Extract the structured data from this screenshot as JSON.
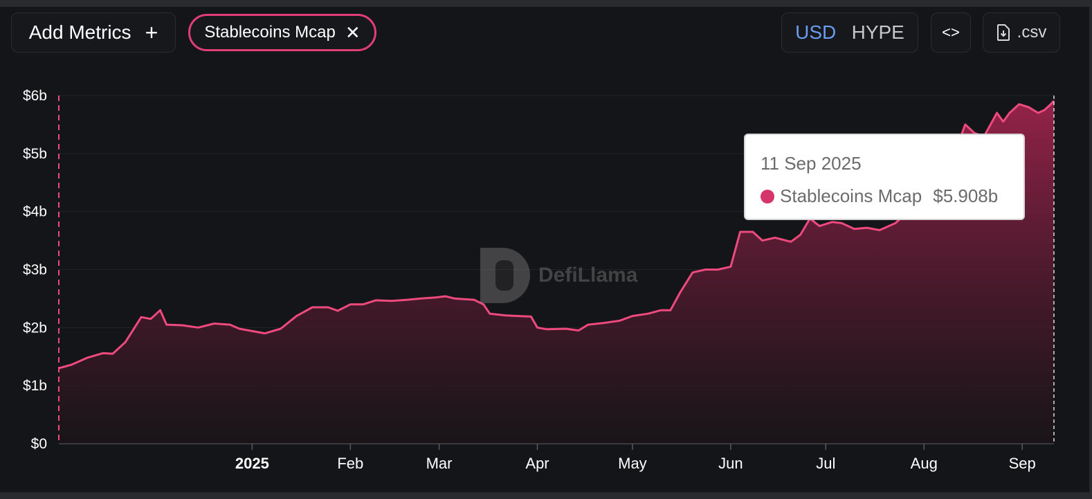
{
  "toolbar": {
    "add_metrics_label": "Add Metrics",
    "add_metrics_icon": "plus-icon",
    "selected_metric": "Stablecoins Mcap",
    "remove_icon": "close-icon",
    "currency_options": [
      "USD",
      "HYPE"
    ],
    "currency_selected": "USD",
    "embed_icon": "code-icon",
    "csv_label": ".csv",
    "csv_icon": "file-download-icon"
  },
  "watermark": {
    "text": "DefiLlama"
  },
  "tooltip": {
    "date": "11 Sep 2025",
    "series_name": "Stablecoins Mcap",
    "value": "$5.908b"
  },
  "colors": {
    "series": "#ef4a7e",
    "accent_blue": "#6a9cf0",
    "background": "#141518"
  },
  "chart_data": {
    "type": "area",
    "y_tick_labels": [
      "$0",
      "$1b",
      "$2b",
      "$3b",
      "$4b",
      "$5b",
      "$6b"
    ],
    "x_tick_labels": [
      "2025",
      "Feb",
      "Mar",
      "Apr",
      "May",
      "Jun",
      "Jul",
      "Aug",
      "Sep"
    ],
    "x_ticks": [
      "2025-01-01",
      "2025-02-01",
      "2025-03-01",
      "2025-04-01",
      "2025-05-01",
      "2025-06-01",
      "2025-07-01",
      "2025-08-01",
      "2025-09-01"
    ],
    "xlim": [
      "2024-11-01",
      "2025-09-11"
    ],
    "ylim": [
      0,
      6
    ],
    "y_unit": "billions USD",
    "series": [
      {
        "name": "Stablecoins Mcap",
        "points": [
          [
            "2024-11-01",
            1.3
          ],
          [
            "2024-11-05",
            1.36
          ],
          [
            "2024-11-10",
            1.48
          ],
          [
            "2024-11-15",
            1.56
          ],
          [
            "2024-11-18",
            1.55
          ],
          [
            "2024-11-22",
            1.75
          ],
          [
            "2024-11-27",
            2.18
          ],
          [
            "2024-11-30",
            2.15
          ],
          [
            "2024-12-03",
            2.3
          ],
          [
            "2024-12-05",
            2.05
          ],
          [
            "2024-12-10",
            2.04
          ],
          [
            "2024-12-15",
            2.0
          ],
          [
            "2024-12-20",
            2.07
          ],
          [
            "2024-12-25",
            2.05
          ],
          [
            "2024-12-28",
            1.98
          ],
          [
            "2025-01-05",
            1.9
          ],
          [
            "2025-01-10",
            1.98
          ],
          [
            "2025-01-15",
            2.2
          ],
          [
            "2025-01-20",
            2.35
          ],
          [
            "2025-01-25",
            2.35
          ],
          [
            "2025-01-28",
            2.29
          ],
          [
            "2025-02-01",
            2.4
          ],
          [
            "2025-02-05",
            2.4
          ],
          [
            "2025-02-09",
            2.47
          ],
          [
            "2025-02-14",
            2.46
          ],
          [
            "2025-02-19",
            2.48
          ],
          [
            "2025-02-23",
            2.5
          ],
          [
            "2025-02-28",
            2.52
          ],
          [
            "2025-03-03",
            2.54
          ],
          [
            "2025-03-06",
            2.5
          ],
          [
            "2025-03-12",
            2.48
          ],
          [
            "2025-03-15",
            2.4
          ],
          [
            "2025-03-17",
            2.24
          ],
          [
            "2025-03-22",
            2.21
          ],
          [
            "2025-03-26",
            2.2
          ],
          [
            "2025-03-30",
            2.19
          ],
          [
            "2025-04-01",
            2.0
          ],
          [
            "2025-04-04",
            1.97
          ],
          [
            "2025-04-10",
            1.98
          ],
          [
            "2025-04-14",
            1.95
          ],
          [
            "2025-04-17",
            2.05
          ],
          [
            "2025-04-22",
            2.08
          ],
          [
            "2025-04-27",
            2.12
          ],
          [
            "2025-05-01",
            2.2
          ],
          [
            "2025-05-06",
            2.24
          ],
          [
            "2025-05-10",
            2.3
          ],
          [
            "2025-05-13",
            2.3
          ],
          [
            "2025-05-16",
            2.6
          ],
          [
            "2025-05-20",
            2.95
          ],
          [
            "2025-05-24",
            3.0
          ],
          [
            "2025-05-28",
            3.0
          ],
          [
            "2025-06-01",
            3.05
          ],
          [
            "2025-06-04",
            3.65
          ],
          [
            "2025-06-08",
            3.65
          ],
          [
            "2025-06-11",
            3.5
          ],
          [
            "2025-06-15",
            3.55
          ],
          [
            "2025-06-20",
            3.48
          ],
          [
            "2025-06-23",
            3.6
          ],
          [
            "2025-06-26",
            3.88
          ],
          [
            "2025-06-29",
            3.75
          ],
          [
            "2025-07-03",
            3.82
          ],
          [
            "2025-07-06",
            3.8
          ],
          [
            "2025-07-10",
            3.7
          ],
          [
            "2025-07-14",
            3.72
          ],
          [
            "2025-07-18",
            3.68
          ],
          [
            "2025-07-23",
            3.8
          ],
          [
            "2025-07-28",
            4.05
          ],
          [
            "2025-08-03",
            4.4
          ],
          [
            "2025-08-08",
            4.8
          ],
          [
            "2025-08-12",
            5.2
          ],
          [
            "2025-08-14",
            5.5
          ],
          [
            "2025-08-17",
            5.35
          ],
          [
            "2025-08-20",
            5.3
          ],
          [
            "2025-08-24",
            5.7
          ],
          [
            "2025-08-26",
            5.55
          ],
          [
            "2025-08-28",
            5.7
          ],
          [
            "2025-08-31",
            5.85
          ],
          [
            "2025-09-03",
            5.8
          ],
          [
            "2025-09-06",
            5.7
          ],
          [
            "2025-09-08",
            5.75
          ],
          [
            "2025-09-10",
            5.85
          ],
          [
            "2025-09-11",
            5.91
          ]
        ]
      }
    ],
    "legend": "none",
    "grid": true
  }
}
